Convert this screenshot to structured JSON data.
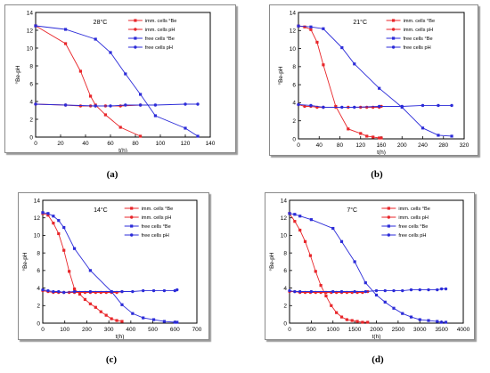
{
  "captions": [
    "(a)",
    "(b)",
    "(c)",
    "(d)"
  ],
  "legend_labels": [
    "imm. cells °Be",
    "imm. cells pH",
    "free cells °Be",
    "free cells pH"
  ],
  "colors": {
    "imm": "#e8262a",
    "free": "#2b2bd8",
    "axis": "#000000"
  },
  "chart_data": [
    {
      "type": "line",
      "annotation": "28°C",
      "xlabel": "t(h)",
      "ylabel": "°Be-pH",
      "xlim": [
        0,
        140
      ],
      "xticks": [
        0,
        20,
        40,
        60,
        80,
        100,
        120,
        140
      ],
      "ylim": [
        0,
        14
      ],
      "yticks": [
        0,
        2,
        4,
        6,
        8,
        10,
        12,
        14
      ],
      "legend_position": "top-right",
      "series": [
        {
          "name": "imm. cells °Be",
          "color": "#e8262a",
          "marker": "square",
          "x": [
            0,
            24,
            36,
            44,
            48,
            56,
            68,
            84
          ],
          "y": [
            12.5,
            10.5,
            7.4,
            4.6,
            3.6,
            2.5,
            1.1,
            0.1
          ]
        },
        {
          "name": "imm. cells pH",
          "color": "#e8262a",
          "marker": "circle",
          "x": [
            0,
            24,
            36,
            44,
            48,
            56,
            68,
            84
          ],
          "y": [
            3.7,
            3.6,
            3.5,
            3.5,
            3.5,
            3.5,
            3.5,
            3.6
          ]
        },
        {
          "name": "free cells °Be",
          "color": "#2b2bd8",
          "marker": "square",
          "x": [
            0,
            24,
            48,
            60,
            72,
            84,
            96,
            120,
            130
          ],
          "y": [
            12.5,
            12.1,
            11.0,
            9.5,
            7.1,
            4.8,
            2.4,
            1.0,
            0.1
          ]
        },
        {
          "name": "free cells pH",
          "color": "#2b2bd8",
          "marker": "circle",
          "x": [
            0,
            24,
            48,
            60,
            72,
            84,
            96,
            120,
            130
          ],
          "y": [
            3.7,
            3.6,
            3.5,
            3.5,
            3.6,
            3.6,
            3.6,
            3.7,
            3.7
          ]
        }
      ]
    },
    {
      "type": "line",
      "annotation": "21°C",
      "xlabel": "t(h)",
      "ylabel": "°Be-pH",
      "xlim": [
        0,
        320
      ],
      "xticks": [
        0,
        40,
        80,
        120,
        160,
        200,
        240,
        280,
        320
      ],
      "ylim": [
        0,
        14
      ],
      "yticks": [
        0,
        2,
        4,
        6,
        8,
        10,
        12,
        14
      ],
      "legend_position": "top-right",
      "series": [
        {
          "name": "imm. cells °Be",
          "color": "#e8262a",
          "marker": "square",
          "x": [
            0,
            12,
            24,
            36,
            48,
            72,
            96,
            120,
            132,
            144,
            156,
            160
          ],
          "y": [
            12.5,
            12.4,
            12.1,
            10.7,
            8.2,
            3.6,
            1.1,
            0.6,
            0.3,
            0.2,
            0.1,
            0.1
          ]
        },
        {
          "name": "imm. cells pH",
          "color": "#e8262a",
          "marker": "circle",
          "x": [
            0,
            12,
            24,
            36,
            48,
            72,
            96,
            120,
            132,
            144,
            156,
            160
          ],
          "y": [
            3.8,
            3.6,
            3.6,
            3.5,
            3.5,
            3.5,
            3.5,
            3.5,
            3.5,
            3.5,
            3.5,
            3.6
          ]
        },
        {
          "name": "free cells °Be",
          "color": "#2b2bd8",
          "marker": "square",
          "x": [
            0,
            24,
            48,
            84,
            108,
            156,
            200,
            240,
            270,
            296
          ],
          "y": [
            12.5,
            12.4,
            12.2,
            10.1,
            8.3,
            5.6,
            3.5,
            1.2,
            0.4,
            0.3
          ]
        },
        {
          "name": "free cells pH",
          "color": "#2b2bd8",
          "marker": "circle",
          "x": [
            0,
            24,
            48,
            84,
            108,
            156,
            200,
            240,
            270,
            296
          ],
          "y": [
            3.8,
            3.7,
            3.5,
            3.5,
            3.5,
            3.6,
            3.6,
            3.7,
            3.7,
            3.7
          ]
        }
      ]
    },
    {
      "type": "line",
      "annotation": "14°C",
      "xlabel": "t(h)",
      "ylabel": "°Be-pH",
      "xlim": [
        0,
        700
      ],
      "xticks": [
        0,
        100,
        200,
        300,
        400,
        500,
        600,
        700
      ],
      "ylim": [
        0,
        14
      ],
      "yticks": [
        0,
        2,
        4,
        6,
        8,
        10,
        12,
        14
      ],
      "legend_position": "top-right",
      "series": [
        {
          "name": "imm. cells °Be",
          "color": "#e8262a",
          "marker": "square",
          "x": [
            0,
            24,
            48,
            72,
            96,
            120,
            144,
            168,
            192,
            216,
            240,
            264,
            288,
            312,
            336,
            360
          ],
          "y": [
            12.5,
            12.3,
            11.4,
            10.2,
            8.3,
            5.9,
            3.9,
            3.3,
            2.7,
            2.2,
            1.8,
            1.3,
            0.9,
            0.5,
            0.3,
            0.2
          ]
        },
        {
          "name": "imm. cells pH",
          "color": "#e8262a",
          "marker": "circle",
          "x": [
            0,
            24,
            48,
            72,
            96,
            120,
            144,
            168,
            192,
            216,
            240,
            264,
            288,
            312,
            336,
            360
          ],
          "y": [
            3.7,
            3.6,
            3.5,
            3.5,
            3.5,
            3.5,
            3.5,
            3.5,
            3.5,
            3.5,
            3.5,
            3.5,
            3.5,
            3.5,
            3.5,
            3.6
          ]
        },
        {
          "name": "free cells °Be",
          "color": "#2b2bd8",
          "marker": "square",
          "x": [
            0,
            24,
            48,
            72,
            96,
            144,
            216,
            312,
            360,
            408,
            456,
            504,
            552,
            600,
            610
          ],
          "y": [
            12.6,
            12.5,
            12.2,
            11.7,
            10.9,
            8.5,
            6.0,
            3.6,
            2.1,
            1.1,
            0.6,
            0.4,
            0.2,
            0.1,
            0.1
          ]
        },
        {
          "name": "free cells pH",
          "color": "#2b2bd8",
          "marker": "circle",
          "x": [
            0,
            24,
            48,
            72,
            96,
            144,
            216,
            312,
            360,
            408,
            456,
            504,
            552,
            600,
            610
          ],
          "y": [
            3.8,
            3.7,
            3.6,
            3.6,
            3.5,
            3.6,
            3.6,
            3.6,
            3.6,
            3.6,
            3.7,
            3.7,
            3.7,
            3.7,
            3.8
          ]
        }
      ]
    },
    {
      "type": "line",
      "annotation": "7°C",
      "xlabel": "t(h)",
      "ylabel": "°Be-pH",
      "xlim": [
        0,
        4000
      ],
      "xticks": [
        0,
        500,
        1000,
        1500,
        2000,
        2500,
        3000,
        3500,
        4000
      ],
      "ylim": [
        0,
        14
      ],
      "yticks": [
        0,
        2,
        4,
        6,
        8,
        10,
        12,
        14
      ],
      "legend_position": "top-right",
      "series": [
        {
          "name": "imm. cells °Be",
          "color": "#e8262a",
          "marker": "square",
          "x": [
            0,
            120,
            240,
            360,
            480,
            600,
            720,
            840,
            960,
            1080,
            1200,
            1320,
            1440,
            1560,
            1680,
            1800
          ],
          "y": [
            12.5,
            11.6,
            10.6,
            9.3,
            7.7,
            5.9,
            4.3,
            3.1,
            2.0,
            1.2,
            0.7,
            0.4,
            0.3,
            0.2,
            0.1,
            0.1
          ]
        },
        {
          "name": "imm. cells pH",
          "color": "#e8262a",
          "marker": "circle",
          "x": [
            0,
            120,
            240,
            360,
            480,
            600,
            720,
            840,
            960,
            1080,
            1200,
            1320,
            1440,
            1560,
            1680,
            1800
          ],
          "y": [
            3.6,
            3.6,
            3.5,
            3.5,
            3.5,
            3.5,
            3.5,
            3.5,
            3.5,
            3.5,
            3.5,
            3.5,
            3.5,
            3.5,
            3.5,
            3.6
          ]
        },
        {
          "name": "free cells °Be",
          "color": "#2b2bd8",
          "marker": "square",
          "x": [
            0,
            120,
            240,
            500,
            1000,
            1200,
            1500,
            1750,
            2000,
            2200,
            2400,
            2600,
            2800,
            3000,
            3200,
            3400,
            3500,
            3600
          ],
          "y": [
            12.5,
            12.4,
            12.2,
            11.8,
            10.8,
            9.3,
            7.0,
            4.6,
            3.2,
            2.4,
            1.7,
            1.1,
            0.7,
            0.4,
            0.3,
            0.2,
            0.1,
            0.1
          ]
        },
        {
          "name": "free cells pH",
          "color": "#2b2bd8",
          "marker": "circle",
          "x": [
            0,
            120,
            240,
            500,
            1000,
            1200,
            1500,
            1750,
            2000,
            2200,
            2400,
            2600,
            2800,
            3000,
            3200,
            3400,
            3500,
            3600
          ],
          "y": [
            3.7,
            3.6,
            3.6,
            3.6,
            3.6,
            3.6,
            3.6,
            3.6,
            3.7,
            3.7,
            3.7,
            3.7,
            3.8,
            3.8,
            3.8,
            3.8,
            3.9,
            3.9
          ]
        }
      ]
    }
  ]
}
